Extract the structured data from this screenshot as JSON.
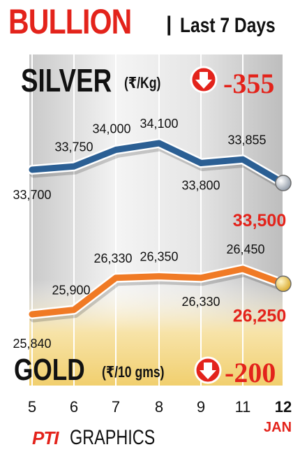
{
  "header": {
    "title": "BULLION",
    "separator": "|",
    "subtitle": "Last 7 Days"
  },
  "silver": {
    "label": "SILVER",
    "unit": "(₹/Kg)",
    "change": "-355",
    "icon": "down-arrow-icon"
  },
  "gold": {
    "label": "GOLD",
    "unit": "(₹/10 gms)",
    "change": "-200",
    "icon": "down-arrow-icon"
  },
  "footer": {
    "brand": "PTI",
    "text": "GRAPHICS",
    "month": "JAN"
  },
  "colors": {
    "title_red": "#e3231b",
    "silver_line": "#2b5f94",
    "gold_line": "#f07a25"
  },
  "chart_data": {
    "type": "line",
    "categories": [
      "5",
      "6",
      "7",
      "8",
      "9",
      "11",
      "12"
    ],
    "series": [
      {
        "name": "SILVER",
        "values": [
          33700,
          33750,
          34000,
          34100,
          33800,
          33855,
          33500
        ],
        "labels": [
          "33,700",
          "33,750",
          "34,000",
          "34,100",
          "33,800",
          "33,855",
          "33,500"
        ]
      },
      {
        "name": "GOLD",
        "values": [
          25840,
          25900,
          26330,
          26350,
          26330,
          26450,
          26250
        ],
        "labels": [
          "25,840",
          "25,900",
          "26,330",
          "26,350",
          "26,330",
          "26,450",
          "26,250"
        ]
      }
    ],
    "xlabel": "",
    "ylabel": "",
    "grid": true
  }
}
